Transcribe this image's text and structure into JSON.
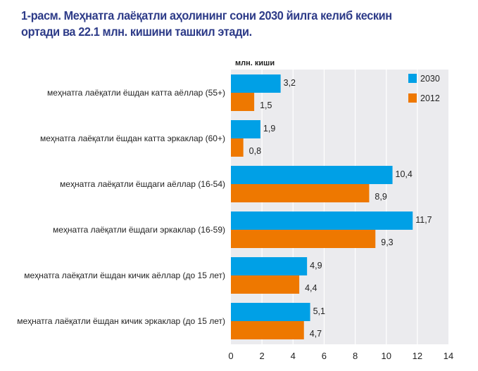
{
  "title": {
    "line1": "1-расм. Меҳнатга лаёқатли аҳолининг сони 2030 йилга келиб кескин",
    "line2": "ортади ва 22.1 млн. кишини ташкил этади."
  },
  "chart_data": {
    "type": "bar",
    "orientation": "horizontal",
    "title": "1-расм. Меҳнатга лаёқатли аҳолининг сони 2030 йилга келиб кескин ортади ва 22.1 млн. кишини ташкил этади.",
    "unit_label": "млн. киши",
    "xlabel": "",
    "ylabel": "",
    "xlim": [
      0,
      14
    ],
    "xticks": [
      0,
      2,
      4,
      6,
      8,
      10,
      12,
      14
    ],
    "grid": true,
    "legend_position": "top-right",
    "categories": [
      "меҳнатга лаёқатли ёшдан катта аёллар  (55+)",
      "меҳнатга лаёқатли ёшдан катта эркаклар  (60+)",
      "меҳнатга лаёқатли ёшдаги аёллар  (16-54)",
      "меҳнатга лаёқатли ёшдаги эркаклар  (16-59)",
      "меҳнатга лаёқатли ёшдан кичик аёллар  (до 15 лет)",
      "меҳнатга лаёқатли ёшдан кичик эркаклар  (до 15 лет)"
    ],
    "series": [
      {
        "name": "2030",
        "color": "#00a0e6",
        "values": [
          3.2,
          1.9,
          10.4,
          11.7,
          4.9,
          5.1
        ],
        "labels": [
          "3,2",
          "1,9",
          "10,4",
          "11,7",
          "4,9",
          "5,1"
        ]
      },
      {
        "name": "2012",
        "color": "#ee7800",
        "values": [
          1.5,
          0.8,
          8.9,
          9.3,
          4.4,
          4.7
        ],
        "labels": [
          "1,5",
          "0,8",
          "8,9",
          "9,3",
          "4,4",
          "4,7"
        ]
      }
    ]
  }
}
